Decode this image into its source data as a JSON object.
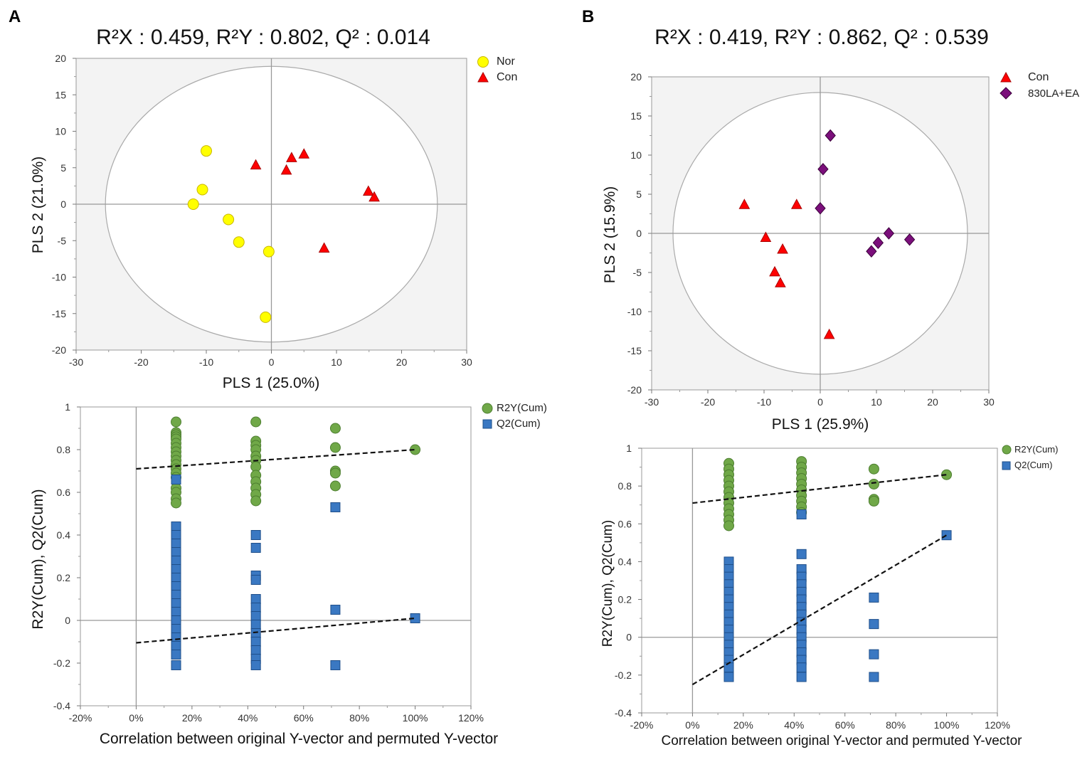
{
  "panels": {
    "a": "A",
    "b": "B"
  },
  "chart_data": [
    {
      "type": "scatter",
      "title": "R²X : 0.459, R²Y : 0.802, Q² : 0.014",
      "xlabel": "PLS 1 (25.0%)",
      "ylabel": "PLS 2 (21.0%)",
      "xlim": [
        -30,
        30
      ],
      "ylim": [
        -20,
        20
      ],
      "xticks": [
        -30,
        -20,
        -10,
        0,
        10,
        20,
        30
      ],
      "yticks": [
        20,
        15,
        10,
        5,
        0,
        -5,
        -10,
        -15,
        -20
      ],
      "confidence_ellipse": {
        "rx": 25.5,
        "ry": 18.9
      },
      "legend": "top-right",
      "series": [
        {
          "name": "Nor",
          "marker": "circle",
          "color": "#ffff00",
          "points": [
            [
              -10,
              7.3
            ],
            [
              -10.6,
              2.0
            ],
            [
              -12.0,
              0.0
            ],
            [
              -6.6,
              -2.1
            ],
            [
              -5.0,
              -5.2
            ],
            [
              -0.4,
              -6.5
            ],
            [
              -0.9,
              -15.5
            ]
          ]
        },
        {
          "name": "Con",
          "marker": "triangle",
          "color": "#ff0000",
          "points": [
            [
              -2.4,
              5.4
            ],
            [
              3.1,
              6.4
            ],
            [
              5.0,
              6.9
            ],
            [
              2.3,
              4.7
            ],
            [
              14.9,
              1.8
            ],
            [
              15.8,
              1.0
            ],
            [
              8.1,
              -6.0
            ]
          ]
        }
      ]
    },
    {
      "type": "scatter",
      "title": "R²X : 0.419, R²Y : 0.862, Q² : 0.539",
      "xlabel": "PLS 1 (25.9%)",
      "ylabel": "PLS 2 (15.9%)",
      "xlim": [
        -30,
        30
      ],
      "ylim": [
        -20,
        20
      ],
      "xticks": [
        -30,
        -20,
        -10,
        0,
        10,
        20,
        30
      ],
      "yticks": [
        20,
        15,
        10,
        5,
        0,
        -5,
        -10,
        -15,
        -20
      ],
      "confidence_ellipse": {
        "rx": 26.2,
        "ry": 18.0
      },
      "legend": "top-right",
      "series": [
        {
          "name": "Con",
          "marker": "triangle",
          "color": "#ff0000",
          "points": [
            [
              -13.5,
              3.7
            ],
            [
              -4.2,
              3.7
            ],
            [
              -9.7,
              -0.5
            ],
            [
              -6.7,
              -2.0
            ],
            [
              -8.1,
              -4.9
            ],
            [
              -7.1,
              -6.3
            ],
            [
              1.6,
              -12.9
            ]
          ]
        },
        {
          "name": "830LA+EA",
          "marker": "diamond",
          "color": "#7b0f7b",
          "points": [
            [
              1.8,
              12.5
            ],
            [
              0.5,
              8.2
            ],
            [
              0.0,
              3.2
            ],
            [
              12.2,
              0.0
            ],
            [
              15.9,
              -0.8
            ],
            [
              10.3,
              -1.2
            ],
            [
              9.1,
              -2.3
            ]
          ]
        }
      ]
    },
    {
      "type": "scatter",
      "title": "",
      "xlabel": "Correlation between original Y-vector and permuted Y-vector",
      "ylabel": "R2Y(Cum), Q2(Cum)",
      "xlim": [
        -0.2,
        1.2
      ],
      "ylim": [
        -0.4,
        1
      ],
      "xticks": [
        "-20%",
        "0%",
        "20%",
        "40%",
        "60%",
        "80%",
        "100%",
        "120%"
      ],
      "yticks": [
        "1",
        "0.8",
        "0.6",
        "0.4",
        "0.2",
        "0",
        "-0.2",
        "-0.4"
      ],
      "legend": "top-right",
      "series": [
        {
          "name": "R2Y(Cum)",
          "marker": "circle",
          "color": "#70a848",
          "points": [
            [
              0.143,
              0.93
            ],
            [
              0.143,
              0.88
            ],
            [
              0.143,
              0.87
            ],
            [
              0.143,
              0.86
            ],
            [
              0.143,
              0.85
            ],
            [
              0.143,
              0.83
            ],
            [
              0.143,
              0.81
            ],
            [
              0.143,
              0.79
            ],
            [
              0.143,
              0.77
            ],
            [
              0.143,
              0.75
            ],
            [
              0.143,
              0.73
            ],
            [
              0.143,
              0.71
            ],
            [
              0.143,
              0.69
            ],
            [
              0.143,
              0.67
            ],
            [
              0.143,
              0.62
            ],
            [
              0.143,
              0.6
            ],
            [
              0.143,
              0.57
            ],
            [
              0.143,
              0.55
            ],
            [
              0.429,
              0.93
            ],
            [
              0.429,
              0.84
            ],
            [
              0.429,
              0.82
            ],
            [
              0.429,
              0.8
            ],
            [
              0.429,
              0.77
            ],
            [
              0.429,
              0.75
            ],
            [
              0.429,
              0.72
            ],
            [
              0.429,
              0.68
            ],
            [
              0.429,
              0.65
            ],
            [
              0.429,
              0.62
            ],
            [
              0.429,
              0.59
            ],
            [
              0.429,
              0.56
            ],
            [
              0.714,
              0.9
            ],
            [
              0.714,
              0.81
            ],
            [
              0.714,
              0.7
            ],
            [
              0.714,
              0.69
            ],
            [
              0.714,
              0.63
            ],
            [
              1.0,
              0.8
            ]
          ],
          "regression": [
            [
              0,
              0.71
            ],
            [
              1.0,
              0.8
            ]
          ]
        },
        {
          "name": "Q2(Cum)",
          "marker": "square",
          "color": "#3a78c2",
          "points": [
            [
              0.143,
              0.66
            ],
            [
              0.143,
              0.44
            ],
            [
              0.143,
              0.4
            ],
            [
              0.143,
              0.36
            ],
            [
              0.143,
              0.32
            ],
            [
              0.143,
              0.28
            ],
            [
              0.143,
              0.24
            ],
            [
              0.143,
              0.2
            ],
            [
              0.143,
              0.16
            ],
            [
              0.143,
              0.12
            ],
            [
              0.143,
              0.08
            ],
            [
              0.143,
              0.04
            ],
            [
              0.143,
              0.0
            ],
            [
              0.143,
              -0.04
            ],
            [
              0.143,
              -0.08
            ],
            [
              0.143,
              -0.12
            ],
            [
              0.143,
              -0.16
            ],
            [
              0.143,
              -0.21
            ],
            [
              0.429,
              0.4
            ],
            [
              0.429,
              0.34
            ],
            [
              0.429,
              0.21
            ],
            [
              0.429,
              0.19
            ],
            [
              0.429,
              0.1
            ],
            [
              0.429,
              0.06
            ],
            [
              0.429,
              0.02
            ],
            [
              0.429,
              -0.02
            ],
            [
              0.429,
              -0.06
            ],
            [
              0.429,
              -0.1
            ],
            [
              0.429,
              -0.14
            ],
            [
              0.429,
              -0.18
            ],
            [
              0.429,
              -0.21
            ],
            [
              0.714,
              0.53
            ],
            [
              0.714,
              0.05
            ],
            [
              0.714,
              -0.21
            ],
            [
              1.0,
              0.01
            ]
          ],
          "regression": [
            [
              0,
              -0.105
            ],
            [
              1.0,
              0.01
            ]
          ]
        }
      ]
    },
    {
      "type": "scatter",
      "title": "",
      "xlabel": "Correlation between original Y-vector and permuted Y-vector",
      "ylabel": "R2Y(Cum), Q2(Cum)",
      "xlim": [
        -0.2,
        1.2
      ],
      "ylim": [
        -0.4,
        1
      ],
      "xticks": [
        "-20%",
        "0%",
        "20%",
        "40%",
        "60%",
        "80%",
        "100%",
        "120%"
      ],
      "yticks": [
        "1",
        "0.8",
        "0.6",
        "0.4",
        "0.2",
        "0",
        "-0.2",
        "-0.4"
      ],
      "legend": "top-right",
      "series": [
        {
          "name": "R2Y(Cum)",
          "marker": "circle",
          "color": "#70a848",
          "points": [
            [
              0.143,
              0.92
            ],
            [
              0.143,
              0.89
            ],
            [
              0.143,
              0.86
            ],
            [
              0.143,
              0.83
            ],
            [
              0.143,
              0.8
            ],
            [
              0.143,
              0.77
            ],
            [
              0.143,
              0.74
            ],
            [
              0.143,
              0.71
            ],
            [
              0.143,
              0.68
            ],
            [
              0.143,
              0.65
            ],
            [
              0.143,
              0.62
            ],
            [
              0.143,
              0.59
            ],
            [
              0.429,
              0.93
            ],
            [
              0.429,
              0.9
            ],
            [
              0.429,
              0.87
            ],
            [
              0.429,
              0.84
            ],
            [
              0.429,
              0.81
            ],
            [
              0.429,
              0.78
            ],
            [
              0.429,
              0.75
            ],
            [
              0.429,
              0.72
            ],
            [
              0.429,
              0.69
            ],
            [
              0.429,
              0.66
            ],
            [
              0.714,
              0.89
            ],
            [
              0.714,
              0.81
            ],
            [
              0.714,
              0.73
            ],
            [
              0.714,
              0.72
            ],
            [
              1.0,
              0.86
            ]
          ],
          "regression": [
            [
              0,
              0.71
            ],
            [
              1.0,
              0.86
            ]
          ]
        },
        {
          "name": "Q2(Cum)",
          "marker": "square",
          "color": "#3a78c2",
          "points": [
            [
              0.143,
              0.4
            ],
            [
              0.143,
              0.36
            ],
            [
              0.143,
              0.32
            ],
            [
              0.143,
              0.28
            ],
            [
              0.143,
              0.24
            ],
            [
              0.143,
              0.2
            ],
            [
              0.143,
              0.16
            ],
            [
              0.143,
              0.12
            ],
            [
              0.143,
              0.08
            ],
            [
              0.143,
              0.04
            ],
            [
              0.143,
              0.0
            ],
            [
              0.143,
              -0.04
            ],
            [
              0.143,
              -0.08
            ],
            [
              0.143,
              -0.12
            ],
            [
              0.143,
              -0.16
            ],
            [
              0.143,
              -0.21
            ],
            [
              0.429,
              0.65
            ],
            [
              0.429,
              0.44
            ],
            [
              0.429,
              0.36
            ],
            [
              0.429,
              0.32
            ],
            [
              0.429,
              0.28
            ],
            [
              0.429,
              0.24
            ],
            [
              0.429,
              0.2
            ],
            [
              0.429,
              0.16
            ],
            [
              0.429,
              0.12
            ],
            [
              0.429,
              0.08
            ],
            [
              0.429,
              0.04
            ],
            [
              0.429,
              0.0
            ],
            [
              0.429,
              -0.04
            ],
            [
              0.429,
              -0.08
            ],
            [
              0.429,
              -0.12
            ],
            [
              0.429,
              -0.16
            ],
            [
              0.429,
              -0.21
            ],
            [
              0.714,
              0.21
            ],
            [
              0.714,
              0.07
            ],
            [
              0.714,
              -0.09
            ],
            [
              0.714,
              -0.21
            ],
            [
              1.0,
              0.54
            ]
          ],
          "regression": [
            [
              0,
              -0.25
            ],
            [
              1.0,
              0.54
            ]
          ]
        }
      ]
    }
  ]
}
